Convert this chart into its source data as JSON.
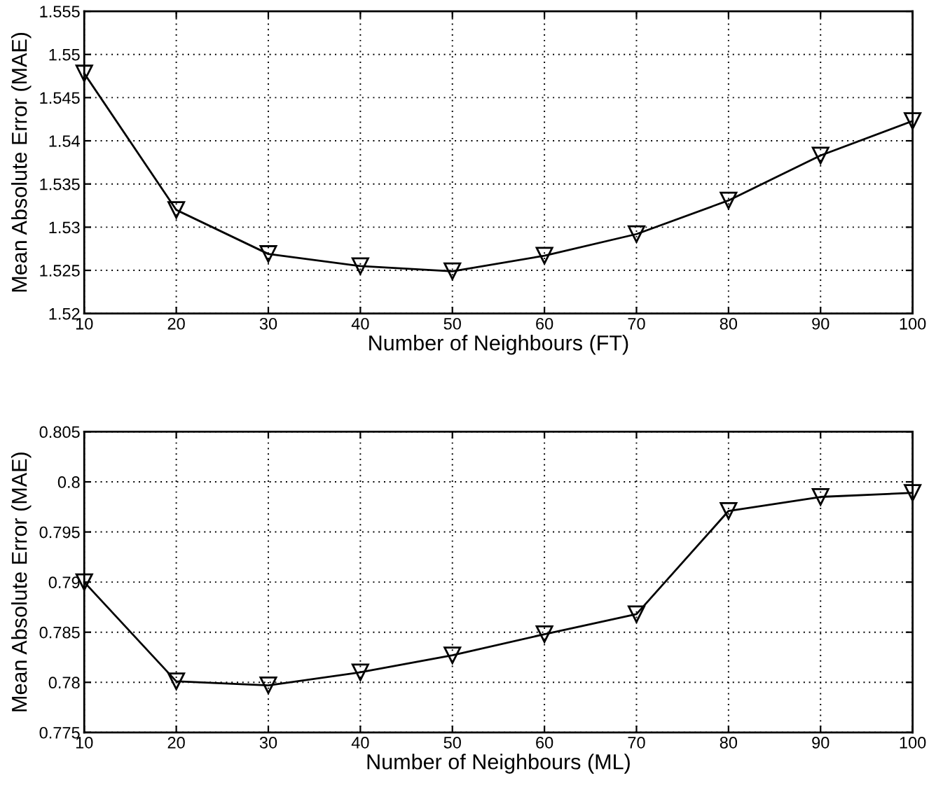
{
  "chart_data": [
    {
      "type": "line",
      "xlabel": "Number of Neighbours (FT)",
      "ylabel": "Mean Absolute Error (MAE)",
      "x": [
        10,
        20,
        30,
        40,
        50,
        60,
        70,
        80,
        90,
        100
      ],
      "series": [
        {
          "color": "#000000",
          "values": [
            1.5478,
            1.532,
            1.5269,
            1.5255,
            1.5249,
            1.5267,
            1.5292,
            1.5331,
            1.5383,
            1.5423
          ]
        }
      ],
      "xlim": [
        10,
        100
      ],
      "xticks": [
        10,
        20,
        30,
        40,
        50,
        60,
        70,
        80,
        90,
        100
      ],
      "ylim": [
        1.52,
        1.555
      ],
      "yticks": [
        1.52,
        1.525,
        1.53,
        1.535,
        1.54,
        1.545,
        1.55,
        1.555
      ],
      "grid": true,
      "marker": "triangle",
      "line_style": "solid"
    },
    {
      "type": "line",
      "xlabel": "Number of Neighbours (ML)",
      "ylabel": "Mean Absolute Error (MAE)",
      "x": [
        10,
        20,
        30,
        40,
        50,
        60,
        70,
        80,
        90,
        100
      ],
      "series": [
        {
          "color": "#000000",
          "values": [
            0.79,
            0.7801,
            0.7797,
            0.781,
            0.7827,
            0.7848,
            0.7868,
            0.7971,
            0.7985,
            0.7989
          ]
        }
      ],
      "xlim": [
        10,
        100
      ],
      "xticks": [
        10,
        20,
        30,
        40,
        50,
        60,
        70,
        80,
        90,
        100
      ],
      "ylim": [
        0.775,
        0.805
      ],
      "yticks": [
        0.775,
        0.78,
        0.785,
        0.79,
        0.795,
        0.8,
        0.805
      ],
      "grid": true,
      "marker": "triangle",
      "line_style": "solid"
    }
  ]
}
